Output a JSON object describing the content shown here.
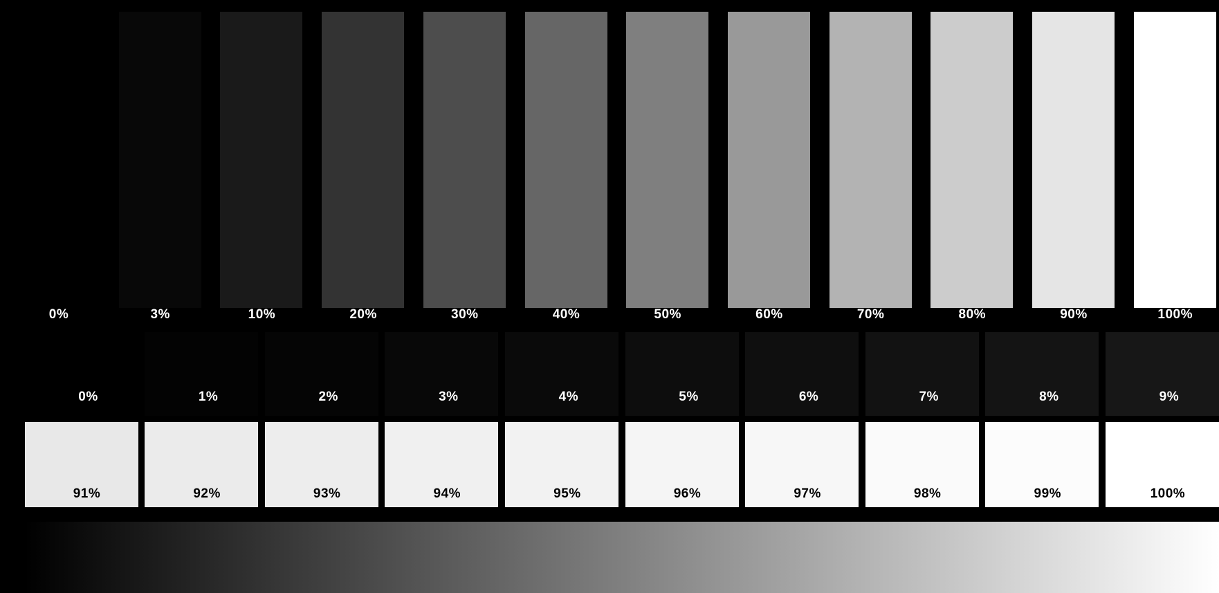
{
  "top_bars": [
    {
      "label": "0%",
      "level": 0
    },
    {
      "label": "3%",
      "level": 3
    },
    {
      "label": "10%",
      "level": 10
    },
    {
      "label": "20%",
      "level": 20
    },
    {
      "label": "30%",
      "level": 30
    },
    {
      "label": "40%",
      "level": 40
    },
    {
      "label": "50%",
      "level": 50
    },
    {
      "label": "60%",
      "level": 60
    },
    {
      "label": "70%",
      "level": 70
    },
    {
      "label": "80%",
      "level": 80
    },
    {
      "label": "90%",
      "level": 90
    },
    {
      "label": "100%",
      "level": 100
    }
  ],
  "dark_tiles": [
    {
      "label": "0%",
      "level": 0
    },
    {
      "label": "1%",
      "level": 1
    },
    {
      "label": "2%",
      "level": 2
    },
    {
      "label": "3%",
      "level": 3
    },
    {
      "label": "4%",
      "level": 4
    },
    {
      "label": "5%",
      "level": 5
    },
    {
      "label": "6%",
      "level": 6
    },
    {
      "label": "7%",
      "level": 7
    },
    {
      "label": "8%",
      "level": 8
    },
    {
      "label": "9%",
      "level": 9
    }
  ],
  "light_tiles": [
    {
      "label": "91%",
      "level": 91
    },
    {
      "label": "92%",
      "level": 92
    },
    {
      "label": "93%",
      "level": 93
    },
    {
      "label": "94%",
      "level": 94
    },
    {
      "label": "95%",
      "level": 95
    },
    {
      "label": "96%",
      "level": 96
    },
    {
      "label": "97%",
      "level": 97
    },
    {
      "label": "98%",
      "level": 98
    },
    {
      "label": "99%",
      "level": 99
    },
    {
      "label": "100%",
      "level": 100
    }
  ],
  "gradient": {
    "from": "#000000",
    "to": "#ffffff"
  }
}
